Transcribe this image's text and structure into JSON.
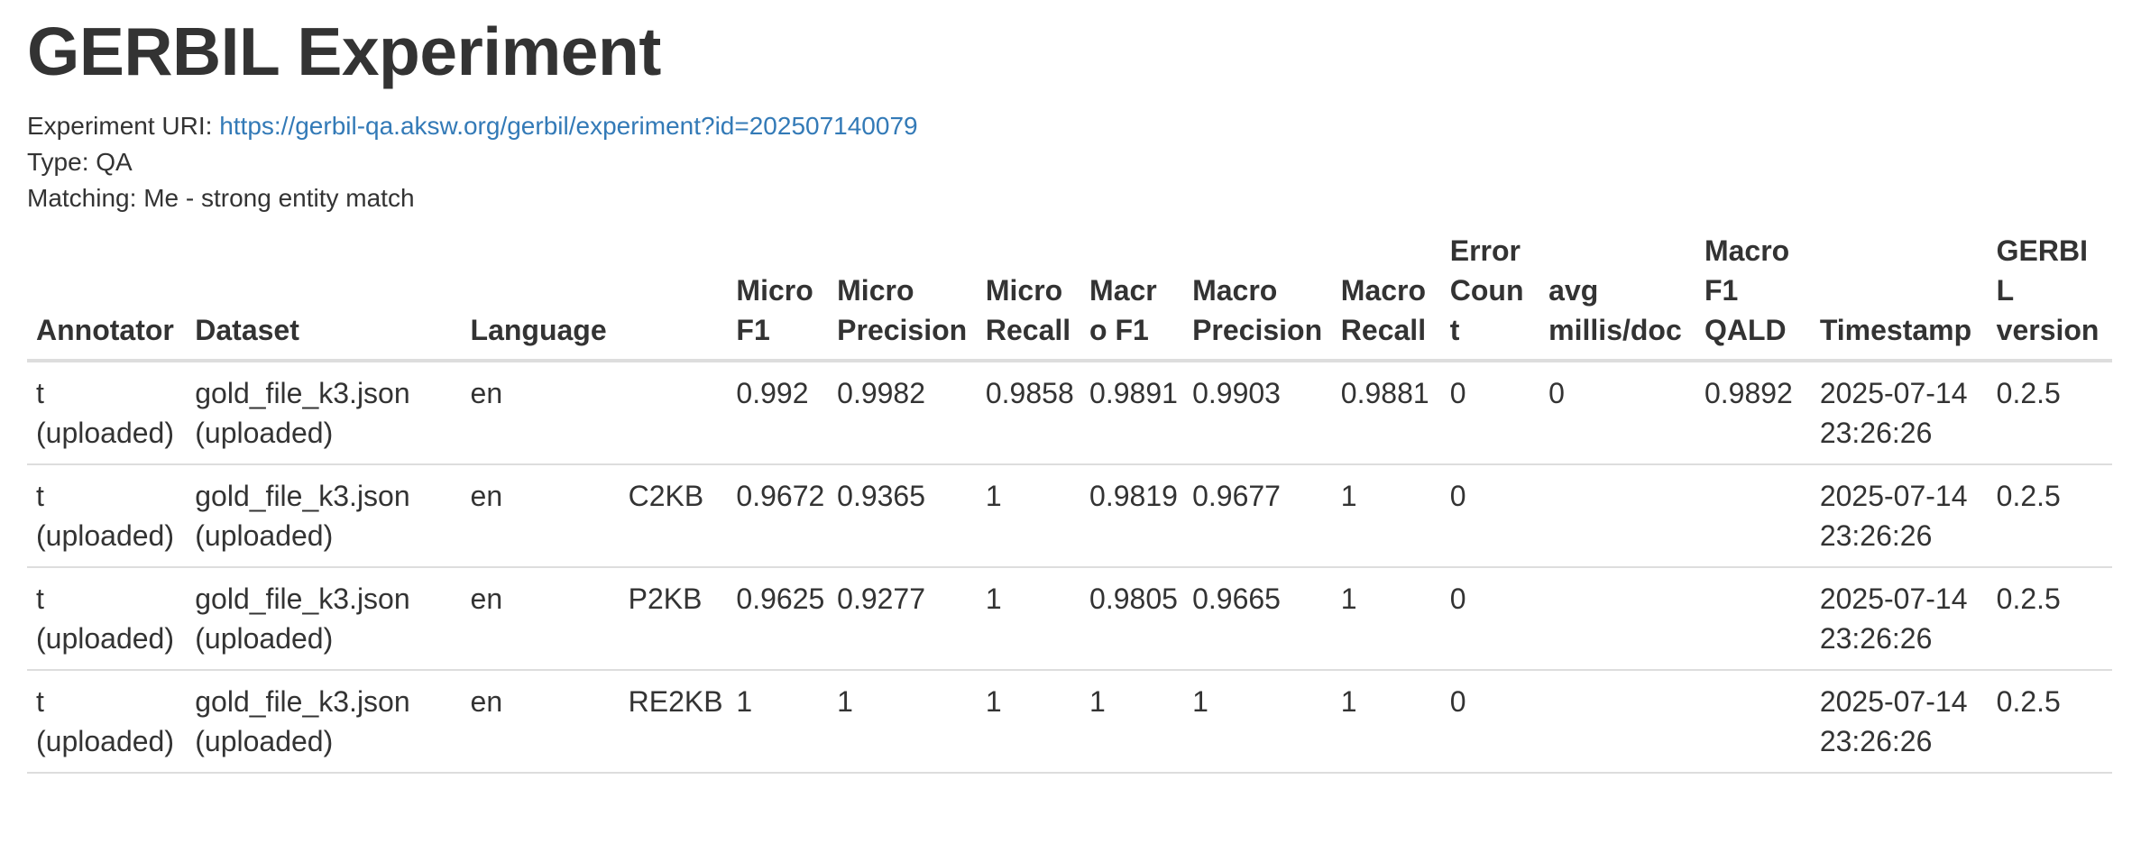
{
  "page": {
    "title": "GERBIL Experiment"
  },
  "meta": {
    "uri_label": "Experiment URI:",
    "uri_link": "https://gerbil-qa.aksw.org/gerbil/experiment?id=202507140079",
    "type_label": "Type:",
    "type_value": "QA",
    "matching_label": "Matching:",
    "matching_value": "Me - strong entity match"
  },
  "table": {
    "headers": {
      "annotator": "Annotator",
      "dataset": "Dataset",
      "language": "Language",
      "experiment": "",
      "micro_f1": "Micro F1",
      "micro_precision": "Micro Precision",
      "micro_recall": "Micro Recall",
      "macro_f1": "Macro F1",
      "macro_precision": "Macro Precision",
      "macro_recall": "Macro Recall",
      "error_count": "Error Count",
      "avg_millis": "avg millis/doc",
      "macro_f1_qald": "Macro F1 QALD",
      "timestamp": "Timestamp",
      "gerbil_version": "GERBIL version"
    },
    "rows": [
      {
        "annotator": "t (uploaded)",
        "dataset": "gold_file_k3.json (uploaded)",
        "language": "en",
        "experiment": "",
        "micro_f1": "0.992",
        "micro_precision": "0.9982",
        "micro_recall": "0.9858",
        "macro_f1": "0.9891",
        "macro_precision": "0.9903",
        "macro_recall": "0.9881",
        "error_count": "0",
        "avg_millis": "0",
        "macro_f1_qald": "0.9892",
        "timestamp": "2025-07-14 23:26:26",
        "gerbil_version": "0.2.5"
      },
      {
        "annotator": "t (uploaded)",
        "dataset": "gold_file_k3.json (uploaded)",
        "language": "en",
        "experiment": "C2KB",
        "micro_f1": "0.9672",
        "micro_precision": "0.9365",
        "micro_recall": "1",
        "macro_f1": "0.9819",
        "macro_precision": "0.9677",
        "macro_recall": "1",
        "error_count": "0",
        "avg_millis": "",
        "macro_f1_qald": "",
        "timestamp": "2025-07-14 23:26:26",
        "gerbil_version": "0.2.5"
      },
      {
        "annotator": "t (uploaded)",
        "dataset": "gold_file_k3.json (uploaded)",
        "language": "en",
        "experiment": "P2KB",
        "micro_f1": "0.9625",
        "micro_precision": "0.9277",
        "micro_recall": "1",
        "macro_f1": "0.9805",
        "macro_precision": "0.9665",
        "macro_recall": "1",
        "error_count": "0",
        "avg_millis": "",
        "macro_f1_qald": "",
        "timestamp": "2025-07-14 23:26:26",
        "gerbil_version": "0.2.5"
      },
      {
        "annotator": "t (uploaded)",
        "dataset": "gold_file_k3.json (uploaded)",
        "language": "en",
        "experiment": "RE2KB",
        "micro_f1": "1",
        "micro_precision": "1",
        "micro_recall": "1",
        "macro_f1": "1",
        "macro_precision": "1",
        "macro_recall": "1",
        "error_count": "0",
        "avg_millis": "",
        "macro_f1_qald": "",
        "timestamp": "2025-07-14 23:26:26",
        "gerbil_version": "0.2.5"
      }
    ]
  },
  "colors": {
    "text": "#333333",
    "link": "#337ab7",
    "border": "#dddddd"
  }
}
